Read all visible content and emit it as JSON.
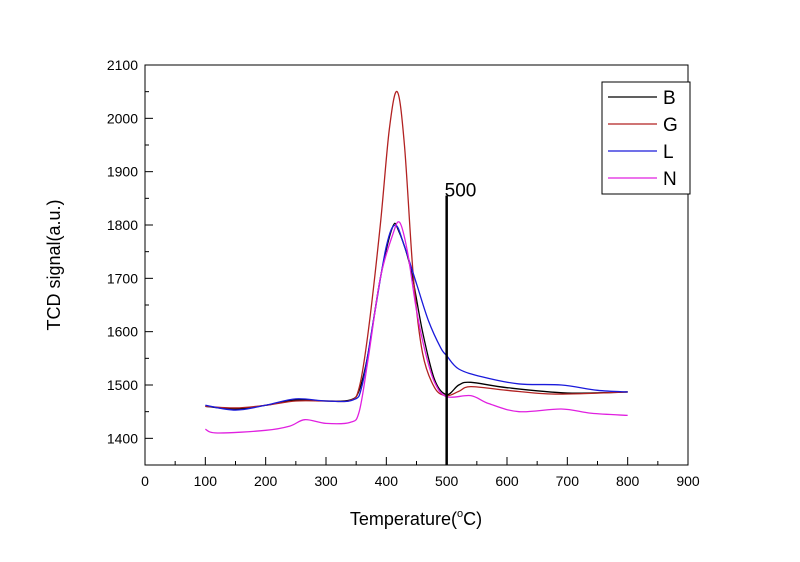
{
  "chart_data": {
    "type": "line",
    "title": "",
    "xlabel": "Temperature(°C)",
    "xlabel_parts": {
      "pre": "Temperature(",
      "sup": "o",
      "post": "C)"
    },
    "ylabel": "TCD signal(a.u.)",
    "xlim": [
      0,
      900
    ],
    "ylim": [
      1350,
      2100
    ],
    "xticks": [
      0,
      100,
      200,
      300,
      400,
      500,
      600,
      700,
      800,
      900
    ],
    "yticks": [
      1400,
      1500,
      1600,
      1700,
      1800,
      1900,
      2000,
      2100
    ],
    "legend_position": "top-right",
    "annotation": {
      "label": "500",
      "x": 500,
      "y_top": 1855
    },
    "series": [
      {
        "name": "B",
        "color": "#000000",
        "points": [
          [
            100,
            1460
          ],
          [
            150,
            1455
          ],
          [
            200,
            1462
          ],
          [
            250,
            1472
          ],
          [
            300,
            1470
          ],
          [
            340,
            1472
          ],
          [
            355,
            1490
          ],
          [
            370,
            1560
          ],
          [
            390,
            1700
          ],
          [
            410,
            1795
          ],
          [
            420,
            1790
          ],
          [
            440,
            1720
          ],
          [
            460,
            1600
          ],
          [
            480,
            1510
          ],
          [
            500,
            1482
          ],
          [
            520,
            1500
          ],
          [
            540,
            1505
          ],
          [
            600,
            1495
          ],
          [
            700,
            1485
          ],
          [
            800,
            1487
          ]
        ]
      },
      {
        "name": "G",
        "color": "#b22222",
        "points": [
          [
            100,
            1460
          ],
          [
            150,
            1457
          ],
          [
            200,
            1462
          ],
          [
            250,
            1470
          ],
          [
            300,
            1470
          ],
          [
            340,
            1471
          ],
          [
            355,
            1495
          ],
          [
            370,
            1600
          ],
          [
            390,
            1800
          ],
          [
            405,
            1980
          ],
          [
            418,
            2050
          ],
          [
            430,
            1950
          ],
          [
            445,
            1700
          ],
          [
            460,
            1560
          ],
          [
            480,
            1495
          ],
          [
            500,
            1480
          ],
          [
            520,
            1488
          ],
          [
            540,
            1497
          ],
          [
            600,
            1490
          ],
          [
            680,
            1483
          ],
          [
            800,
            1487
          ]
        ]
      },
      {
        "name": "L",
        "color": "#1a1adb",
        "points": [
          [
            100,
            1462
          ],
          [
            150,
            1453
          ],
          [
            200,
            1462
          ],
          [
            250,
            1474
          ],
          [
            300,
            1470
          ],
          [
            345,
            1472
          ],
          [
            360,
            1500
          ],
          [
            380,
            1630
          ],
          [
            400,
            1760
          ],
          [
            415,
            1800
          ],
          [
            430,
            1760
          ],
          [
            450,
            1690
          ],
          [
            470,
            1620
          ],
          [
            490,
            1570
          ],
          [
            500,
            1555
          ],
          [
            520,
            1530
          ],
          [
            560,
            1515
          ],
          [
            620,
            1502
          ],
          [
            690,
            1500
          ],
          [
            750,
            1490
          ],
          [
            800,
            1487
          ]
        ]
      },
      {
        "name": "N",
        "color": "#e020e0",
        "points": [
          [
            100,
            1417
          ],
          [
            120,
            1410
          ],
          [
            200,
            1415
          ],
          [
            240,
            1423
          ],
          [
            265,
            1435
          ],
          [
            300,
            1428
          ],
          [
            340,
            1430
          ],
          [
            355,
            1450
          ],
          [
            370,
            1550
          ],
          [
            390,
            1700
          ],
          [
            410,
            1780
          ],
          [
            422,
            1805
          ],
          [
            435,
            1750
          ],
          [
            450,
            1640
          ],
          [
            465,
            1560
          ],
          [
            480,
            1505
          ],
          [
            500,
            1478
          ],
          [
            540,
            1480
          ],
          [
            570,
            1465
          ],
          [
            620,
            1450
          ],
          [
            690,
            1455
          ],
          [
            740,
            1447
          ],
          [
            800,
            1443
          ]
        ]
      }
    ]
  }
}
